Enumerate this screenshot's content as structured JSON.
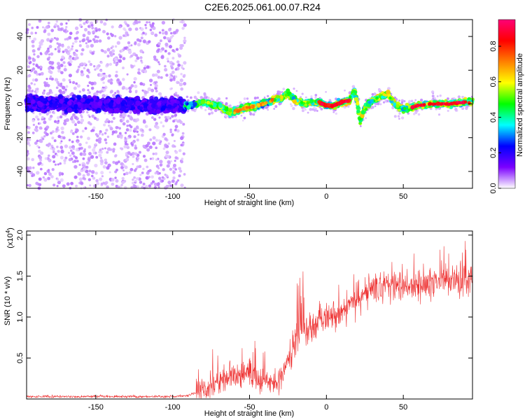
{
  "title": "C2E6.2025.061.00.07.R24",
  "chart_data": [
    {
      "type": "heatmap",
      "xlabel": "Height of straight line (km)",
      "ylabel": "Frequency (Hz)",
      "xlim": [
        -195,
        95
      ],
      "ylim": [
        -50,
        50
      ],
      "xticks": [
        -150,
        -100,
        -50,
        0,
        50
      ],
      "yticks": [
        -40,
        -20,
        0,
        20,
        40
      ],
      "xtick_labels": [
        "-150",
        "-100",
        "-50",
        "0",
        "50"
      ],
      "ytick_labels": [
        "-40",
        "-20",
        "0",
        "20",
        "40"
      ],
      "ridge": {
        "x": [
          -195,
          -160,
          -120,
          -90,
          -80,
          -70,
          -62,
          -55,
          -45,
          -35,
          -30,
          -25,
          -20,
          -15,
          -10,
          -5,
          0,
          5,
          10,
          15,
          18,
          20,
          22,
          25,
          30,
          35,
          40,
          45,
          50,
          60,
          70,
          80,
          90,
          95
        ],
        "y": [
          0,
          0,
          -1,
          -1,
          1,
          -1,
          -5,
          -3,
          -1,
          2,
          3,
          6,
          2,
          0,
          1,
          1,
          -1,
          -1,
          1,
          2,
          8,
          1,
          -10,
          -2,
          2,
          4,
          6,
          -1,
          -3,
          -1,
          0,
          0,
          1,
          1
        ]
      },
      "colorbar": {
        "label": "Normalized spectral amplitude",
        "range": [
          0,
          0.95
        ],
        "ticks": [
          0.0,
          0.2,
          0.4,
          0.6,
          0.8
        ],
        "tick_labels": [
          "0.0",
          "0.2",
          "0.4",
          "0.6",
          "0.8"
        ],
        "colors": [
          "#ffffff",
          "#7b00ff",
          "#0000ff",
          "#00ffff",
          "#00ff00",
          "#ffff00",
          "#ff8000",
          "#ff0000",
          "#ff0077"
        ]
      }
    },
    {
      "type": "line",
      "xlabel": "Height of straight line (km)",
      "ylabel": "SNR (10 * v/v)",
      "y_multiplier": "(x10",
      "y_multiplier_exp": "4",
      "y_multiplier_close": ")",
      "xlim": [
        -195,
        95
      ],
      "ylim": [
        0,
        2.05
      ],
      "xticks": [
        -150,
        -100,
        -50,
        0,
        50
      ],
      "yticks": [
        0.5,
        1.0,
        1.5,
        2.0
      ],
      "xtick_labels": [
        "-150",
        "-100",
        "-50",
        "0",
        "50"
      ],
      "ytick_labels": [
        "0.5",
        "1.0",
        "1.5",
        "2.0"
      ],
      "series": [
        {
          "color": "#ee3333",
          "trend_x": [
            -195,
            -100,
            -90,
            -80,
            -70,
            -60,
            -50,
            -45,
            -40,
            -35,
            -30,
            -25,
            -20,
            -15,
            -10,
            -5,
            0,
            10,
            20,
            30,
            40,
            50,
            60,
            70,
            80,
            90,
            95
          ],
          "trend_y": [
            0.03,
            0.03,
            0.04,
            0.12,
            0.22,
            0.28,
            0.32,
            0.28,
            0.22,
            0.18,
            0.26,
            0.45,
            0.72,
            0.82,
            0.85,
            0.92,
            0.98,
            1.08,
            1.18,
            1.33,
            1.4,
            1.38,
            1.4,
            1.42,
            1.45,
            1.46,
            1.45
          ]
        }
      ]
    }
  ]
}
